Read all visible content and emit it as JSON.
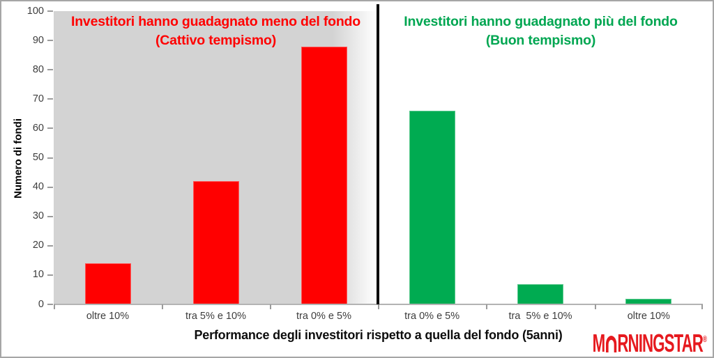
{
  "chart_data": {
    "type": "bar",
    "ylabel": "Numero di fondi",
    "xlabel": "Performance degli investitori rispetto a quella del fondo (5anni)",
    "ylim": [
      0,
      100
    ],
    "yticks": [
      0,
      10,
      20,
      30,
      40,
      50,
      60,
      70,
      80,
      90,
      100
    ],
    "grid": false,
    "legend_position": "none",
    "groups": [
      {
        "id": "bad-timing",
        "title_line1": "Investitori hanno guadagnato meno del fondo",
        "title_line2": "(Cattivo tempismo)",
        "title_color": "#ff0000",
        "bar_color": "#ff0000",
        "region_background": "#d3d3d3",
        "categories": [
          "oltre 10%",
          "tra 5% e 10%",
          "tra 0% e 5%"
        ],
        "values": [
          14,
          42,
          88
        ]
      },
      {
        "id": "good-timing",
        "title_line1": "Investitori hanno guadagnato più del fondo",
        "title_line2": "(Buon tempismo)",
        "title_color": "#00a651",
        "bar_color": "#00ab51",
        "region_background": "#ffffff",
        "categories": [
          "tra 0% e 5%",
          "tra  5% e 10%",
          "oltre 10%"
        ],
        "values": [
          66,
          7,
          2
        ]
      }
    ]
  },
  "branding": {
    "logo_m": "M",
    "logo_rest": "RNINGSTAR",
    "logo_reg": "®",
    "logo_color": "#e6191e"
  }
}
